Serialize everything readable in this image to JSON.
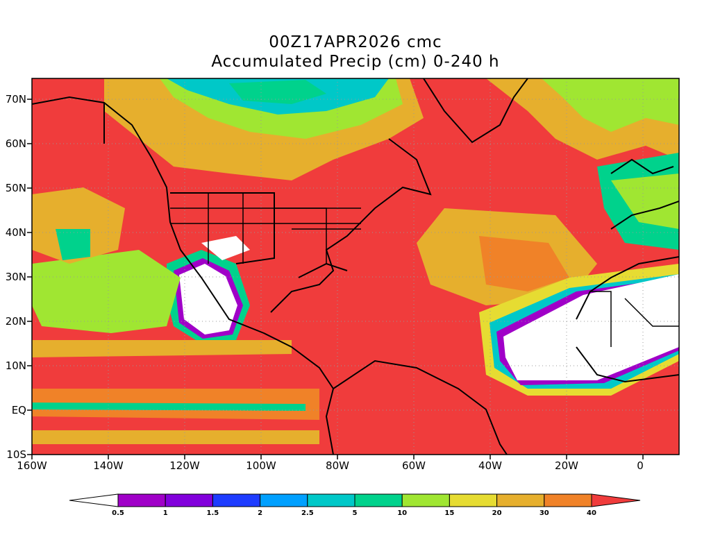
{
  "header": {
    "line1": "00Z17APR2026 cmc",
    "line2": "Accumulated Precip (cm) 0-240 h"
  },
  "axes": {
    "x_ticks": [
      "160W",
      "140W",
      "120W",
      "100W",
      "80W",
      "60W",
      "40W",
      "20W",
      "0"
    ],
    "y_ticks": [
      "70N",
      "60N",
      "50N",
      "40N",
      "30N",
      "20N",
      "10N",
      "EQ",
      "10S"
    ]
  },
  "legend": {
    "labels": [
      "0.5",
      "1",
      "1.5",
      "2",
      "2.5",
      "5",
      "10",
      "15",
      "20",
      "30",
      "40"
    ],
    "colors": [
      "#ffffff",
      "#a000c8",
      "#8200dc",
      "#1e3cff",
      "#00a0ff",
      "#00c8c8",
      "#00d28c",
      "#a0e632",
      "#e6dc32",
      "#e6af2d",
      "#f08228",
      "#f03c3c"
    ]
  },
  "map_colors": {
    "heavy": "#f03c3c",
    "orange": "#f08228",
    "gold": "#e6af2d",
    "yellow": "#e6dc32",
    "lime": "#a0e632",
    "green": "#00d28c",
    "teal": "#00c8c8",
    "dry": "#ffffff"
  }
}
